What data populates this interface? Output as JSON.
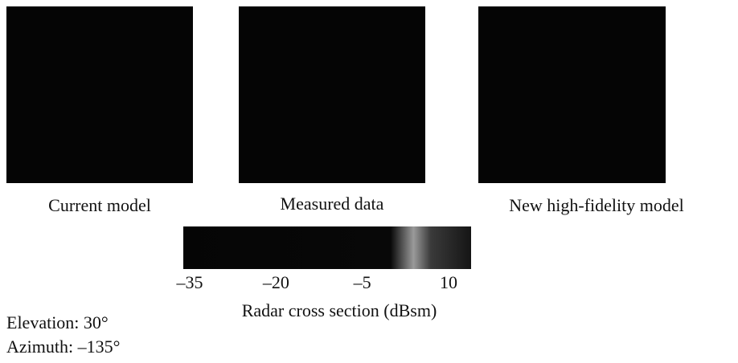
{
  "panels": [
    {
      "label": "Current model"
    },
    {
      "label": "Measured data"
    },
    {
      "label": "New high-fidelity model"
    }
  ],
  "colorbar": {
    "range": [
      -35,
      10
    ],
    "ticks": [
      {
        "value": -35,
        "label": "–35"
      },
      {
        "value": -20,
        "label": "–20"
      },
      {
        "value": -5,
        "label": "–5"
      },
      {
        "value": 10,
        "label": "10"
      }
    ],
    "label": "Radar cross section (dBsm)"
  },
  "view": {
    "elevation": "Elevation: 30°",
    "azimuth": "Azimuth: –135°"
  }
}
